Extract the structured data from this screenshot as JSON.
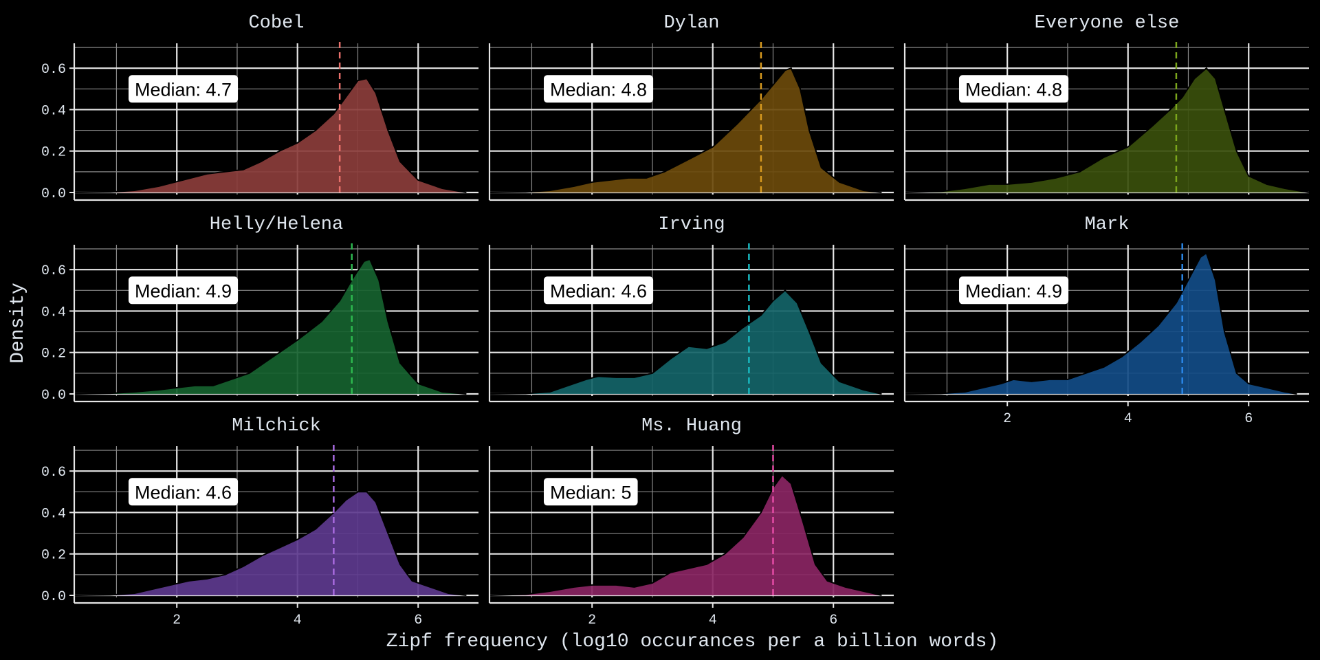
{
  "chart_data": {
    "type": "area",
    "xlabel": "Zipf frequency (log10 occurances per a billion words)",
    "ylabel": "Density",
    "xlim": [
      0.3,
      7.0
    ],
    "ylim": [
      -0.01,
      0.72
    ],
    "x_ticks": [
      2,
      4,
      6
    ],
    "y_ticks": [
      0.0,
      0.2,
      0.4,
      0.6
    ],
    "grid": true,
    "median_prefix": "Median: ",
    "panels": [
      {
        "name": "Cobel",
        "color": "#e8706b",
        "fill": "#8b3d3b",
        "median": 4.7,
        "median_label": "4.7",
        "density": [
          [
            0.3,
            0
          ],
          [
            0.9,
            0.002
          ],
          [
            1.3,
            0.01
          ],
          [
            1.7,
            0.03
          ],
          [
            2.1,
            0.06
          ],
          [
            2.5,
            0.09
          ],
          [
            2.8,
            0.1
          ],
          [
            3.1,
            0.11
          ],
          [
            3.4,
            0.15
          ],
          [
            3.7,
            0.2
          ],
          [
            4.0,
            0.24
          ],
          [
            4.3,
            0.3
          ],
          [
            4.6,
            0.38
          ],
          [
            4.8,
            0.46
          ],
          [
            5.0,
            0.54
          ],
          [
            5.15,
            0.55
          ],
          [
            5.3,
            0.48
          ],
          [
            5.5,
            0.3
          ],
          [
            5.7,
            0.15
          ],
          [
            6.0,
            0.06
          ],
          [
            6.4,
            0.02
          ],
          [
            6.8,
            0
          ]
        ]
      },
      {
        "name": "Dylan",
        "color": "#d89a1e",
        "fill": "#6b4a0b",
        "median": 4.8,
        "median_label": "4.8",
        "density": [
          [
            0.3,
            0
          ],
          [
            0.9,
            0.002
          ],
          [
            1.3,
            0.01
          ],
          [
            1.7,
            0.03
          ],
          [
            2.0,
            0.05
          ],
          [
            2.3,
            0.06
          ],
          [
            2.6,
            0.07
          ],
          [
            2.9,
            0.07
          ],
          [
            3.2,
            0.1
          ],
          [
            3.6,
            0.16
          ],
          [
            4.0,
            0.22
          ],
          [
            4.4,
            0.33
          ],
          [
            4.8,
            0.45
          ],
          [
            5.0,
            0.52
          ],
          [
            5.2,
            0.59
          ],
          [
            5.3,
            0.6
          ],
          [
            5.45,
            0.5
          ],
          [
            5.6,
            0.3
          ],
          [
            5.8,
            0.12
          ],
          [
            6.1,
            0.05
          ],
          [
            6.5,
            0.01
          ],
          [
            6.8,
            0
          ]
        ]
      },
      {
        "name": "Everyone else",
        "color": "#7ba61c",
        "fill": "#3a4f0c",
        "median": 4.8,
        "median_label": "4.8",
        "density": [
          [
            0.3,
            0
          ],
          [
            0.9,
            0.005
          ],
          [
            1.3,
            0.02
          ],
          [
            1.7,
            0.04
          ],
          [
            2.0,
            0.04
          ],
          [
            2.4,
            0.05
          ],
          [
            2.8,
            0.07
          ],
          [
            3.2,
            0.1
          ],
          [
            3.6,
            0.17
          ],
          [
            4.0,
            0.22
          ],
          [
            4.4,
            0.32
          ],
          [
            4.7,
            0.4
          ],
          [
            4.9,
            0.46
          ],
          [
            5.1,
            0.55
          ],
          [
            5.3,
            0.6
          ],
          [
            5.45,
            0.55
          ],
          [
            5.6,
            0.4
          ],
          [
            5.8,
            0.2
          ],
          [
            6.0,
            0.08
          ],
          [
            6.3,
            0.04
          ],
          [
            6.6,
            0.02
          ],
          [
            7.0,
            0
          ]
        ]
      },
      {
        "name": "Helly/Helena",
        "color": "#2db84f",
        "fill": "#16622f",
        "median": 4.9,
        "median_label": "4.9",
        "density": [
          [
            0.3,
            0
          ],
          [
            0.9,
            0.003
          ],
          [
            1.3,
            0.01
          ],
          [
            1.7,
            0.02
          ],
          [
            2.0,
            0.03
          ],
          [
            2.3,
            0.04
          ],
          [
            2.6,
            0.04
          ],
          [
            2.9,
            0.07
          ],
          [
            3.2,
            0.1
          ],
          [
            3.6,
            0.18
          ],
          [
            4.0,
            0.26
          ],
          [
            4.4,
            0.35
          ],
          [
            4.7,
            0.45
          ],
          [
            4.9,
            0.55
          ],
          [
            5.1,
            0.64
          ],
          [
            5.2,
            0.65
          ],
          [
            5.35,
            0.55
          ],
          [
            5.5,
            0.35
          ],
          [
            5.7,
            0.15
          ],
          [
            6.0,
            0.05
          ],
          [
            6.4,
            0.01
          ],
          [
            6.8,
            0
          ]
        ]
      },
      {
        "name": "Irving",
        "color": "#18b8c0",
        "fill": "#146468",
        "median": 4.6,
        "median_label": "4.6",
        "density": [
          [
            0.3,
            0
          ],
          [
            0.9,
            0.002
          ],
          [
            1.3,
            0.01
          ],
          [
            1.6,
            0.04
          ],
          [
            1.9,
            0.07
          ],
          [
            2.1,
            0.085
          ],
          [
            2.4,
            0.08
          ],
          [
            2.7,
            0.08
          ],
          [
            3.0,
            0.1
          ],
          [
            3.3,
            0.17
          ],
          [
            3.6,
            0.23
          ],
          [
            3.9,
            0.22
          ],
          [
            4.2,
            0.25
          ],
          [
            4.5,
            0.32
          ],
          [
            4.8,
            0.38
          ],
          [
            5.0,
            0.45
          ],
          [
            5.2,
            0.5
          ],
          [
            5.4,
            0.44
          ],
          [
            5.6,
            0.3
          ],
          [
            5.8,
            0.15
          ],
          [
            6.1,
            0.06
          ],
          [
            6.5,
            0.02
          ],
          [
            6.8,
            0
          ]
        ]
      },
      {
        "name": "Mark",
        "color": "#2a86e6",
        "fill": "#124c87",
        "median": 4.9,
        "median_label": "4.9",
        "density": [
          [
            0.3,
            0
          ],
          [
            0.9,
            0.002
          ],
          [
            1.3,
            0.01
          ],
          [
            1.6,
            0.03
          ],
          [
            1.9,
            0.05
          ],
          [
            2.1,
            0.07
          ],
          [
            2.4,
            0.06
          ],
          [
            2.7,
            0.07
          ],
          [
            3.0,
            0.07
          ],
          [
            3.3,
            0.1
          ],
          [
            3.6,
            0.13
          ],
          [
            3.9,
            0.18
          ],
          [
            4.2,
            0.25
          ],
          [
            4.5,
            0.33
          ],
          [
            4.8,
            0.44
          ],
          [
            5.0,
            0.55
          ],
          [
            5.2,
            0.66
          ],
          [
            5.3,
            0.68
          ],
          [
            5.45,
            0.55
          ],
          [
            5.6,
            0.3
          ],
          [
            5.8,
            0.1
          ],
          [
            6.0,
            0.05
          ],
          [
            6.3,
            0.03
          ],
          [
            6.6,
            0.01
          ],
          [
            6.8,
            0
          ]
        ]
      },
      {
        "name": "Milchick",
        "color": "#a86bdf",
        "fill": "#5d3a8e",
        "median": 4.6,
        "median_label": "4.6",
        "density": [
          [
            0.3,
            0
          ],
          [
            0.9,
            0.002
          ],
          [
            1.3,
            0.01
          ],
          [
            1.6,
            0.03
          ],
          [
            1.9,
            0.05
          ],
          [
            2.2,
            0.07
          ],
          [
            2.5,
            0.08
          ],
          [
            2.8,
            0.1
          ],
          [
            3.1,
            0.14
          ],
          [
            3.4,
            0.19
          ],
          [
            3.7,
            0.23
          ],
          [
            4.0,
            0.27
          ],
          [
            4.3,
            0.32
          ],
          [
            4.6,
            0.4
          ],
          [
            4.8,
            0.46
          ],
          [
            5.0,
            0.5
          ],
          [
            5.15,
            0.5
          ],
          [
            5.3,
            0.45
          ],
          [
            5.5,
            0.3
          ],
          [
            5.7,
            0.15
          ],
          [
            5.9,
            0.07
          ],
          [
            6.2,
            0.04
          ],
          [
            6.5,
            0.01
          ],
          [
            6.8,
            0
          ]
        ]
      },
      {
        "name": "Ms. Huang",
        "color": "#e64ba6",
        "fill": "#8a2563",
        "median": 5,
        "median_label": "5",
        "density": [
          [
            0.3,
            0
          ],
          [
            0.9,
            0.005
          ],
          [
            1.3,
            0.02
          ],
          [
            1.7,
            0.04
          ],
          [
            2.0,
            0.05
          ],
          [
            2.4,
            0.05
          ],
          [
            2.7,
            0.04
          ],
          [
            3.0,
            0.06
          ],
          [
            3.3,
            0.11
          ],
          [
            3.6,
            0.13
          ],
          [
            3.9,
            0.15
          ],
          [
            4.2,
            0.2
          ],
          [
            4.5,
            0.28
          ],
          [
            4.8,
            0.4
          ],
          [
            5.0,
            0.52
          ],
          [
            5.15,
            0.58
          ],
          [
            5.3,
            0.54
          ],
          [
            5.5,
            0.35
          ],
          [
            5.7,
            0.15
          ],
          [
            5.9,
            0.07
          ],
          [
            6.2,
            0.04
          ],
          [
            6.5,
            0.02
          ],
          [
            6.8,
            0
          ]
        ]
      }
    ]
  }
}
